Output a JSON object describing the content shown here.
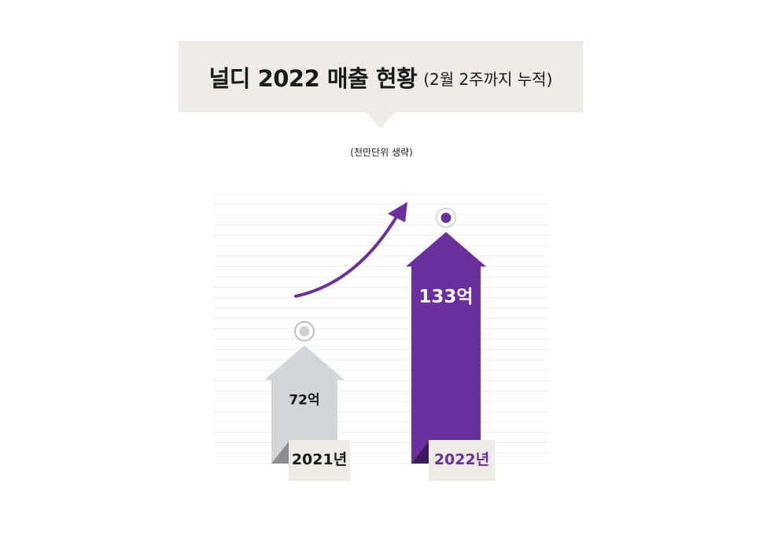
{
  "header": {
    "title": "널디 2022 매출 현황",
    "subtitle": "(2월 2주까지 누적)"
  },
  "note": "(천만단위 생략)",
  "colors": {
    "banner_bg": "#efebe5",
    "accent_purple": "#6b2f9e",
    "dark_purple": "#3d1a5e",
    "gray_bar": "#d2d5da",
    "gray_fold": "#8c8e91",
    "grid": "#eeeeee"
  },
  "chart_data": {
    "type": "bar",
    "title": "널디 2022 매출 현황",
    "subtitle": "(2월 2주까지 누적)",
    "categories": [
      "2021년",
      "2022년"
    ],
    "values": [
      72,
      133
    ],
    "data_labels": [
      "72억",
      "133억"
    ],
    "unit": "억",
    "ylim": [
      0,
      150
    ],
    "grid": true,
    "legend": "none",
    "annotation": "growth-arrow"
  }
}
